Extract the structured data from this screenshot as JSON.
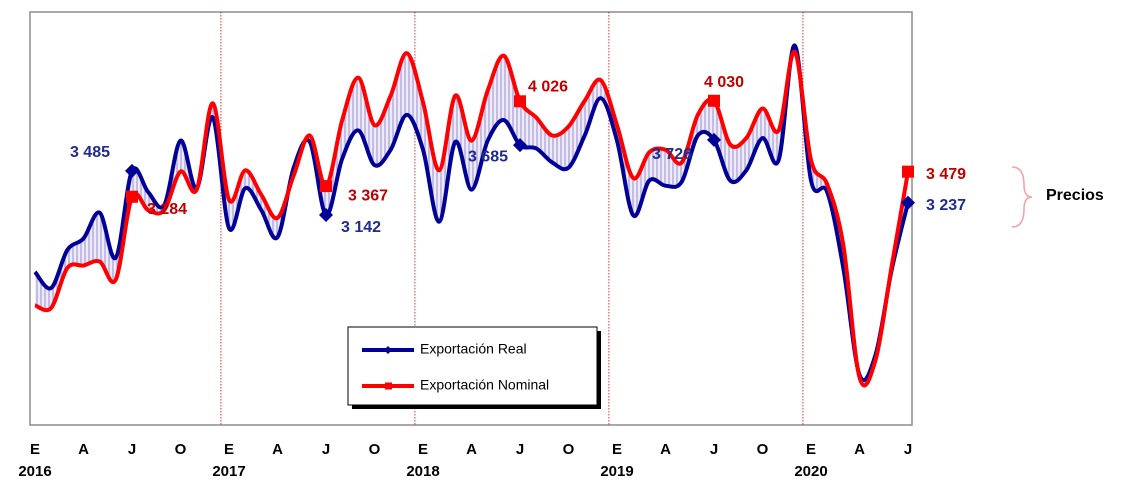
{
  "chart_data": {
    "type": "line",
    "categories": [
      "E",
      null,
      null,
      "A",
      null,
      null,
      "J",
      null,
      null,
      "O",
      null,
      null,
      "E",
      null,
      null,
      "A",
      null,
      null,
      "J",
      null,
      null,
      "O",
      null,
      null,
      "E",
      null,
      null,
      "A",
      null,
      null,
      "J",
      null,
      null,
      "O",
      null,
      null,
      "E",
      null,
      null,
      "A",
      null,
      null,
      "J",
      null,
      null,
      "O",
      null,
      null,
      "E",
      null,
      null,
      "A",
      null,
      null,
      "J"
    ],
    "year_labels": [
      "2016",
      "2017",
      "2018",
      "2019",
      "2020"
    ],
    "series": [
      {
        "name": "Exportación Real",
        "color": "#000099",
        "values": [
          2700,
          2575,
          2870,
          2960,
          3160,
          2810,
          3485,
          3320,
          3220,
          3720,
          3350,
          3900,
          3040,
          3350,
          3180,
          2970,
          3510,
          3710,
          3142,
          3580,
          3800,
          3530,
          3650,
          3920,
          3650,
          3090,
          3710,
          3340,
          3720,
          3880,
          3685,
          3660,
          3550,
          3510,
          3760,
          4050,
          3720,
          3140,
          3410,
          3370,
          3400,
          3760,
          3726,
          3410,
          3490,
          3740,
          3570,
          4460,
          3410,
          3320,
          2730,
          1900,
          2060,
          2720,
          3237
        ],
        "value_labels": [
          null,
          null,
          null,
          null,
          null,
          null,
          "3 485",
          null,
          null,
          null,
          null,
          null,
          null,
          null,
          null,
          null,
          null,
          null,
          "3 142",
          null,
          null,
          null,
          null,
          null,
          null,
          null,
          null,
          null,
          null,
          null,
          "3 685",
          null,
          null,
          null,
          null,
          null,
          null,
          null,
          null,
          null,
          null,
          null,
          "3 726",
          null,
          null,
          null,
          null,
          null,
          null,
          null,
          null,
          null,
          null,
          null,
          "3 237"
        ]
      },
      {
        "name": "Exportación Nominal",
        "color": "#ff0000",
        "values": [
          2440,
          2420,
          2730,
          2750,
          2780,
          2640,
          3284,
          3180,
          3180,
          3480,
          3340,
          4010,
          3260,
          3490,
          3300,
          3120,
          3450,
          3760,
          3367,
          3880,
          4210,
          3840,
          4070,
          4400,
          4020,
          3490,
          4070,
          3720,
          4110,
          4380,
          4026,
          3900,
          3760,
          3830,
          4030,
          4190,
          3840,
          3430,
          3630,
          3650,
          3550,
          3920,
          4030,
          3690,
          3740,
          3970,
          3800,
          4410,
          3570,
          3380,
          2910,
          1880,
          2020,
          2750,
          3479
        ],
        "value_labels": [
          null,
          null,
          null,
          null,
          null,
          null,
          "3 284",
          null,
          null,
          null,
          null,
          null,
          null,
          null,
          null,
          null,
          null,
          null,
          "3 367",
          null,
          null,
          null,
          null,
          null,
          null,
          null,
          null,
          null,
          null,
          null,
          "4 026",
          null,
          null,
          null,
          null,
          null,
          null,
          null,
          null,
          null,
          null,
          null,
          "4 030",
          null,
          null,
          null,
          null,
          null,
          null,
          null,
          null,
          null,
          null,
          null,
          "3 479"
        ]
      }
    ],
    "ylim": [
      1510,
      4720
    ],
    "annotation": "Precios"
  }
}
